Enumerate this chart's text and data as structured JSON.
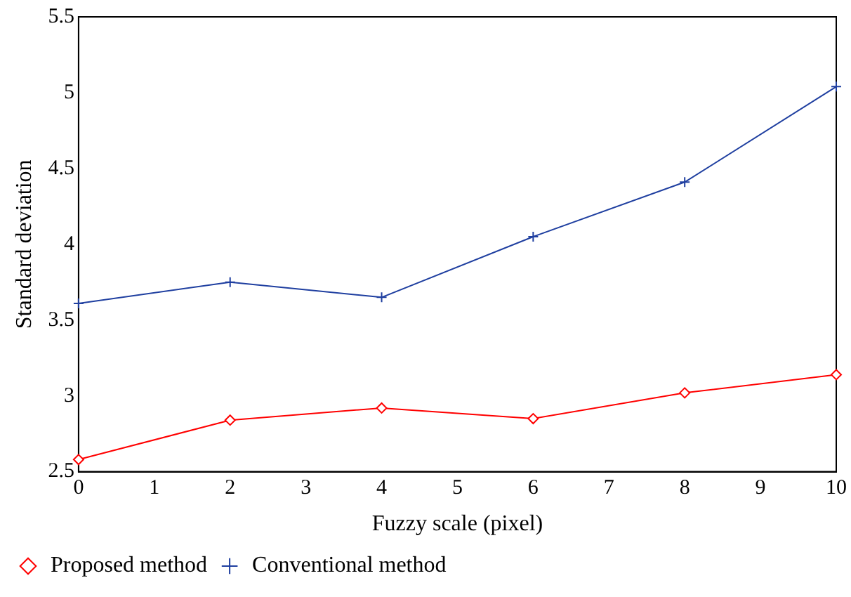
{
  "chart_data": {
    "type": "line",
    "xlabel": "Fuzzy scale (pixel)",
    "ylabel": "Standard deviation",
    "x": [
      0,
      2,
      4,
      6,
      8,
      10
    ],
    "series": [
      {
        "name": "Proposed method",
        "color": "#ff0000",
        "marker": "diamond",
        "values": [
          2.58,
          2.84,
          2.92,
          2.85,
          3.02,
          3.14
        ]
      },
      {
        "name": "Conventional method",
        "color": "#1f3fa0",
        "marker": "cross",
        "values": [
          3.61,
          3.75,
          3.65,
          4.05,
          4.41,
          5.04
        ]
      }
    ],
    "xlim": [
      0,
      10
    ],
    "xticks": [
      0,
      1,
      2,
      3,
      4,
      5,
      6,
      7,
      8,
      9,
      10
    ],
    "ylim": [
      2.5,
      5.5
    ],
    "yticks": [
      2.5,
      3,
      3.5,
      4,
      4.5,
      5,
      5.5
    ],
    "grid": false,
    "legend": "bottom",
    "line_style": "solid"
  }
}
